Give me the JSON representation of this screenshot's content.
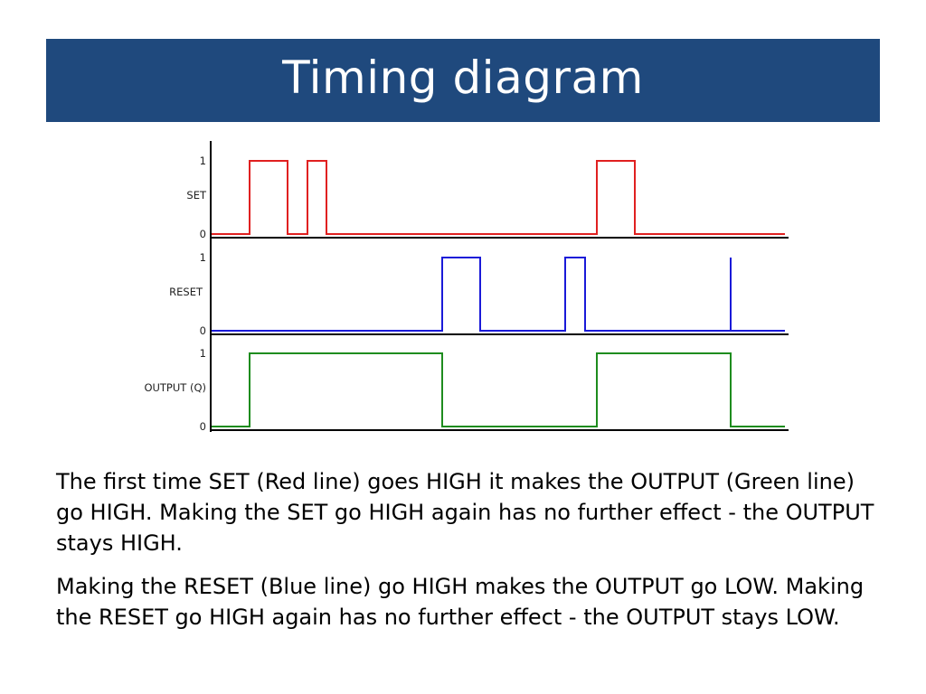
{
  "title": "Timing diagram",
  "diagram": {
    "rows": [
      {
        "label": "SET",
        "high_label": "1",
        "low_label": "0",
        "color": "#e02020",
        "pulses": [
          [
            276,
            318
          ],
          [
            340,
            361
          ],
          [
            660,
            702
          ]
        ],
        "spikes": []
      },
      {
        "label": "RESET",
        "high_label": "1",
        "low_label": "0",
        "color": "#1a1ad8",
        "pulses": [
          [
            489,
            531
          ],
          [
            625,
            647
          ]
        ],
        "spikes": [
          808
        ]
      },
      {
        "label": "OUTPUT (Q)",
        "high_label": "1",
        "low_label": "0",
        "color": "#1e8c1e",
        "pulses": [
          [
            276,
            489
          ],
          [
            660,
            808
          ]
        ],
        "spikes": []
      }
    ]
  },
  "paragraphs": [
    "The first time SET (Red line) goes HIGH it makes the OUTPUT (Green line) go HIGH. Making the SET go HIGH again has no further effect - the OUTPUT stays HIGH.",
    "Making the RESET (Blue line) go HIGH makes the OUTPUT go LOW. Making the RESET go HIGH again has no further effect - the OUTPUT stays LOW."
  ]
}
